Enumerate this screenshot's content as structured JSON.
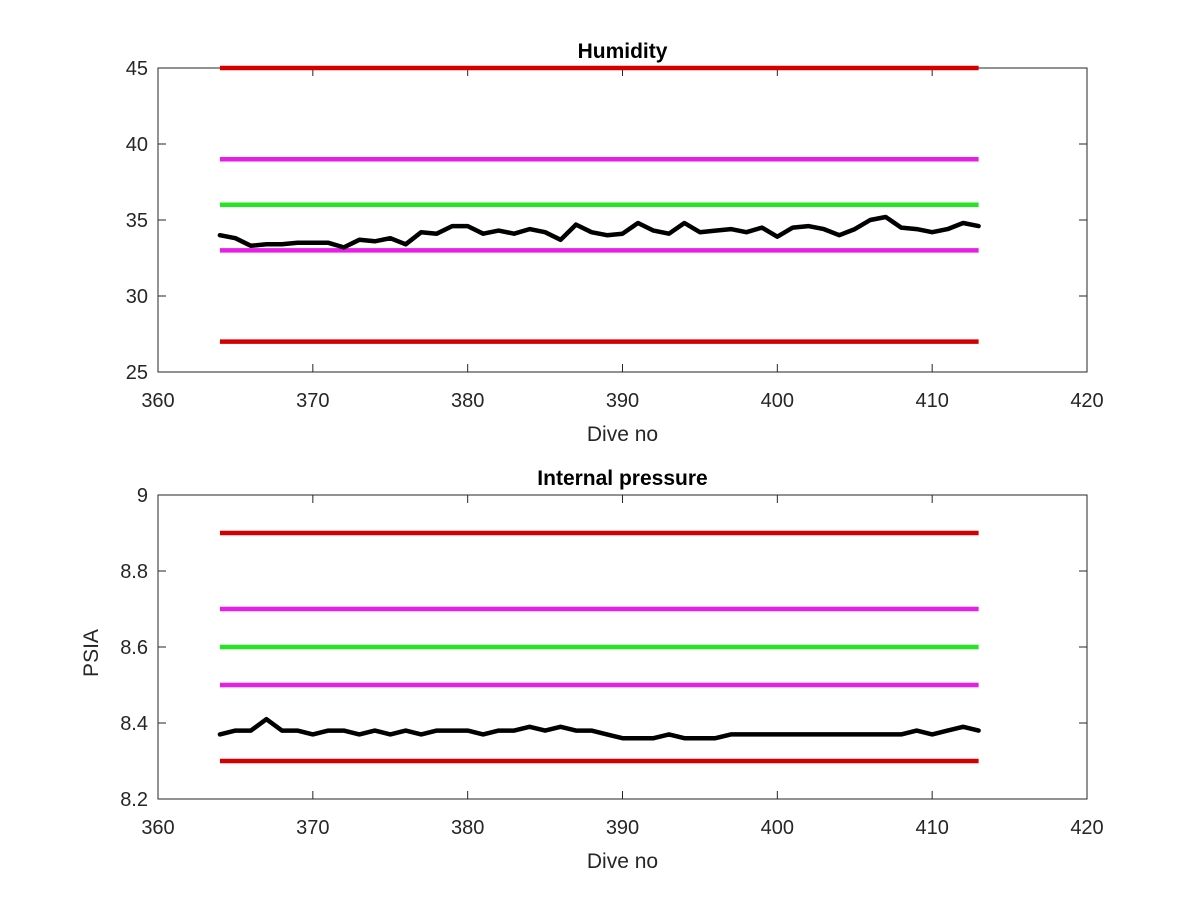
{
  "chart_data": [
    {
      "type": "line",
      "title": "Humidity",
      "xlabel": "Dive no",
      "ylabel": "",
      "xlim": [
        360,
        420
      ],
      "ylim": [
        25,
        45
      ],
      "xticks": [
        360,
        370,
        380,
        390,
        400,
        410,
        420
      ],
      "xtick_labels": [
        "360",
        "370",
        "380",
        "390",
        "400",
        "410",
        "420"
      ],
      "yticks": [
        25,
        30,
        35,
        40,
        45
      ],
      "ytick_labels": [
        "25",
        "30",
        "35",
        "40",
        "45"
      ],
      "grid": false,
      "reference_lines": [
        {
          "y": 45,
          "x": [
            364,
            413
          ],
          "color": "#d40000"
        },
        {
          "y": 39,
          "x": [
            364,
            413
          ],
          "color": "#e61ee6"
        },
        {
          "y": 36,
          "x": [
            364,
            413
          ],
          "color": "#22e622"
        },
        {
          "y": 33,
          "x": [
            364,
            413
          ],
          "color": "#e61ee6"
        },
        {
          "y": 27,
          "x": [
            364,
            413
          ],
          "color": "#d40000"
        }
      ],
      "series": [
        {
          "color": "#000000",
          "x": [
            364,
            365,
            366,
            367,
            368,
            369,
            370,
            371,
            372,
            373,
            374,
            375,
            376,
            377,
            378,
            379,
            380,
            381,
            382,
            383,
            384,
            385,
            386,
            387,
            388,
            389,
            390,
            391,
            392,
            393,
            394,
            395,
            396,
            397,
            398,
            399,
            400,
            401,
            402,
            403,
            404,
            405,
            406,
            407,
            408,
            409,
            410,
            411,
            412,
            413
          ],
          "y": [
            34.0,
            33.8,
            33.3,
            33.4,
            33.4,
            33.5,
            33.5,
            33.5,
            33.2,
            33.7,
            33.6,
            33.8,
            33.4,
            34.2,
            34.1,
            34.6,
            34.6,
            34.1,
            34.3,
            34.1,
            34.4,
            34.2,
            33.7,
            34.7,
            34.2,
            34.0,
            34.1,
            34.8,
            34.3,
            34.1,
            34.8,
            34.2,
            34.3,
            34.4,
            34.2,
            34.5,
            33.9,
            34.5,
            34.6,
            34.4,
            34.0,
            34.4,
            35.0,
            35.2,
            34.5,
            34.4,
            34.2,
            34.4,
            34.8,
            34.6
          ]
        }
      ]
    },
    {
      "type": "line",
      "title": "Internal pressure",
      "xlabel": "Dive no",
      "ylabel": "PSIA",
      "xlim": [
        360,
        420
      ],
      "ylim": [
        8.2,
        9.0
      ],
      "xticks": [
        360,
        370,
        380,
        390,
        400,
        410,
        420
      ],
      "xtick_labels": [
        "360",
        "370",
        "380",
        "390",
        "400",
        "410",
        "420"
      ],
      "yticks": [
        8.2,
        8.4,
        8.6,
        8.8,
        9.0
      ],
      "ytick_labels": [
        "8.2",
        "8.4",
        "8.6",
        "8.8",
        "9"
      ],
      "grid": false,
      "reference_lines": [
        {
          "y": 8.9,
          "x": [
            364,
            413
          ],
          "color": "#d40000"
        },
        {
          "y": 8.7,
          "x": [
            364,
            413
          ],
          "color": "#e61ee6"
        },
        {
          "y": 8.6,
          "x": [
            364,
            413
          ],
          "color": "#22e622"
        },
        {
          "y": 8.5,
          "x": [
            364,
            413
          ],
          "color": "#e61ee6"
        },
        {
          "y": 8.3,
          "x": [
            364,
            413
          ],
          "color": "#d40000"
        }
      ],
      "series": [
        {
          "color": "#000000",
          "x": [
            364,
            365,
            366,
            367,
            368,
            369,
            370,
            371,
            372,
            373,
            374,
            375,
            376,
            377,
            378,
            379,
            380,
            381,
            382,
            383,
            384,
            385,
            386,
            387,
            388,
            389,
            390,
            391,
            392,
            393,
            394,
            395,
            396,
            397,
            398,
            399,
            400,
            401,
            402,
            403,
            404,
            405,
            406,
            407,
            408,
            409,
            410,
            411,
            412,
            413
          ],
          "y": [
            8.37,
            8.38,
            8.38,
            8.41,
            8.38,
            8.38,
            8.37,
            8.38,
            8.38,
            8.37,
            8.38,
            8.37,
            8.38,
            8.37,
            8.38,
            8.38,
            8.38,
            8.37,
            8.38,
            8.38,
            8.39,
            8.38,
            8.39,
            8.38,
            8.38,
            8.37,
            8.36,
            8.36,
            8.36,
            8.37,
            8.36,
            8.36,
            8.36,
            8.37,
            8.37,
            8.37,
            8.37,
            8.37,
            8.37,
            8.37,
            8.37,
            8.37,
            8.37,
            8.37,
            8.37,
            8.38,
            8.37,
            8.38,
            8.39,
            8.38
          ]
        }
      ]
    }
  ]
}
